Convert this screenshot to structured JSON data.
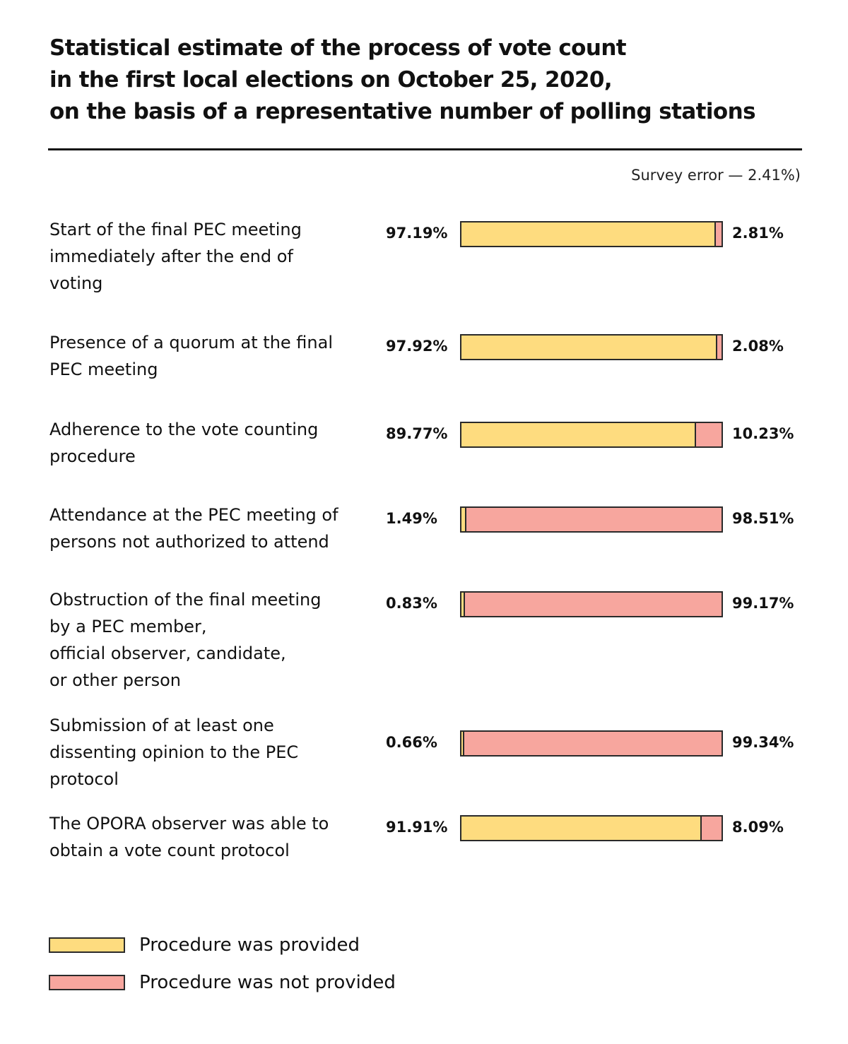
{
  "colors": {
    "provided": "#FEDC7F",
    "not_provided": "#F7A69E",
    "border": "#2a2a2a"
  },
  "chart_data": {
    "type": "bar",
    "orientation": "horizontal-stacked-100",
    "title": "Statistical estimate of the process of vote count in the first local elections on October 25, 2020, on the basis of a representative number of polling stations",
    "title_lines": [
      "Statistical estimate of the process of vote count",
      "in the first local elections on October 25, 2020,",
      "on the basis of a representative number of polling stations"
    ],
    "subtitle": "Survey error — 2.41%)",
    "xlabel": "",
    "ylabel": "",
    "xlim": [
      0,
      100
    ],
    "grid": false,
    "legend_position": "bottom-left",
    "categories": [
      "Start of the final PEC meeting immediately after the end of voting",
      "Presence of a quorum at the final PEC meeting",
      "Adherence to the vote counting procedure",
      "Attendance at the PEC meeting of persons not authorized to attend",
      "Obstruction of the final meeting by a PEC member, official observer, candidate, or other person",
      "Submission of at least one dissenting opinion to the PEC protocol",
      "The OPORA observer was able to obtain a vote count protocol"
    ],
    "category_lines": [
      [
        "Start of the final PEC meeting",
        "immediately after the end of",
        "voting"
      ],
      [
        "Presence of a quorum at the final",
        "PEC meeting"
      ],
      [
        "Adherence to the vote counting",
        "procedure"
      ],
      [
        "Attendance at the PEC meeting of",
        "persons not authorized to attend"
      ],
      [
        "Obstruction of the final meeting",
        "by a PEC member,",
        "official observer, candidate,",
        "or other person"
      ],
      [
        "Submission of at least one",
        "dissenting opinion to the PEC",
        "protocol"
      ],
      [
        "The OPORA observer was able to",
        "obtain a vote count protocol"
      ]
    ],
    "series": [
      {
        "name": "Procedure was provided",
        "values": [
          97.19,
          97.92,
          89.77,
          1.49,
          0.83,
          0.66,
          91.91
        ],
        "labels": [
          "97.19%",
          "97.92%",
          "89.77%",
          "1.49%",
          "0.83%",
          "0.66%",
          "91.91%"
        ]
      },
      {
        "name": "Procedure was not provided",
        "values": [
          2.81,
          2.08,
          10.23,
          98.51,
          99.17,
          99.34,
          8.09
        ],
        "labels": [
          "2.81%",
          "2.08%",
          "10.23%",
          "98.51%",
          "99.17%",
          "99.34%",
          "8.09%"
        ]
      }
    ]
  },
  "legend": [
    {
      "label": "Procedure was provided"
    },
    {
      "label": "Procedure was not provided"
    }
  ]
}
